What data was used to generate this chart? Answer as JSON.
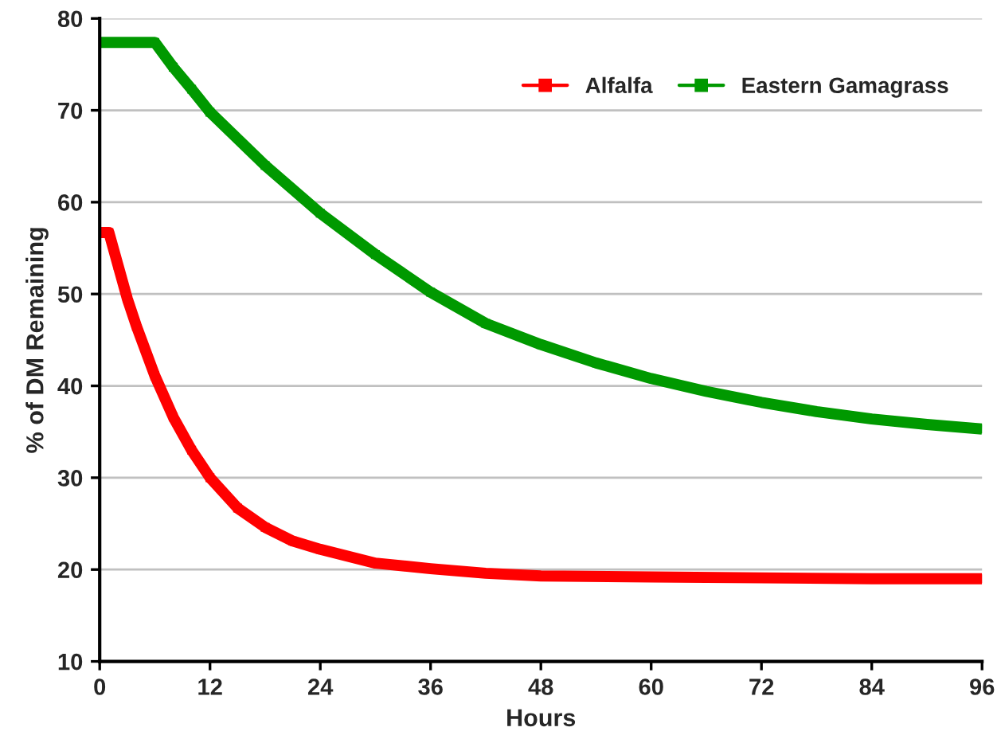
{
  "chart_data": {
    "type": "line",
    "xlabel": "Hours",
    "ylabel": "% of DM Remaining",
    "xlim": [
      0,
      96
    ],
    "xticks": [
      0,
      12,
      24,
      36,
      48,
      60,
      72,
      84,
      96
    ],
    "ylim": [
      10,
      80
    ],
    "yticks": [
      10,
      20,
      30,
      40,
      50,
      60,
      70,
      80
    ],
    "grid": "y",
    "legend": "top right",
    "marker": "square",
    "line_style": "solid",
    "series": [
      {
        "name": "Alfalfa",
        "color": "#ff0000",
        "x": [
          0,
          1,
          2,
          3,
          4,
          6,
          8,
          10,
          12,
          15,
          18,
          21,
          24,
          30,
          36,
          42,
          48,
          60,
          72,
          84,
          96
        ],
        "values": [
          56.7,
          56.7,
          53.1,
          49.5,
          46.5,
          41.1,
          36.6,
          33.0,
          30.0,
          26.7,
          24.6,
          23.1,
          22.2,
          20.7,
          20.1,
          19.6,
          19.3,
          19.2,
          19.1,
          19.0,
          19.0
        ]
      },
      {
        "name": "Eastern Gamagrass",
        "color": "#009900",
        "x": [
          0,
          6,
          8,
          10,
          12,
          18,
          24,
          30,
          36,
          42,
          48,
          54,
          60,
          66,
          72,
          78,
          84,
          90,
          96
        ],
        "values": [
          77.4,
          77.4,
          74.7,
          72.3,
          69.8,
          64.0,
          58.8,
          54.3,
          50.2,
          46.8,
          44.5,
          42.5,
          40.8,
          39.4,
          38.2,
          37.2,
          36.4,
          35.8,
          35.3
        ]
      }
    ]
  }
}
